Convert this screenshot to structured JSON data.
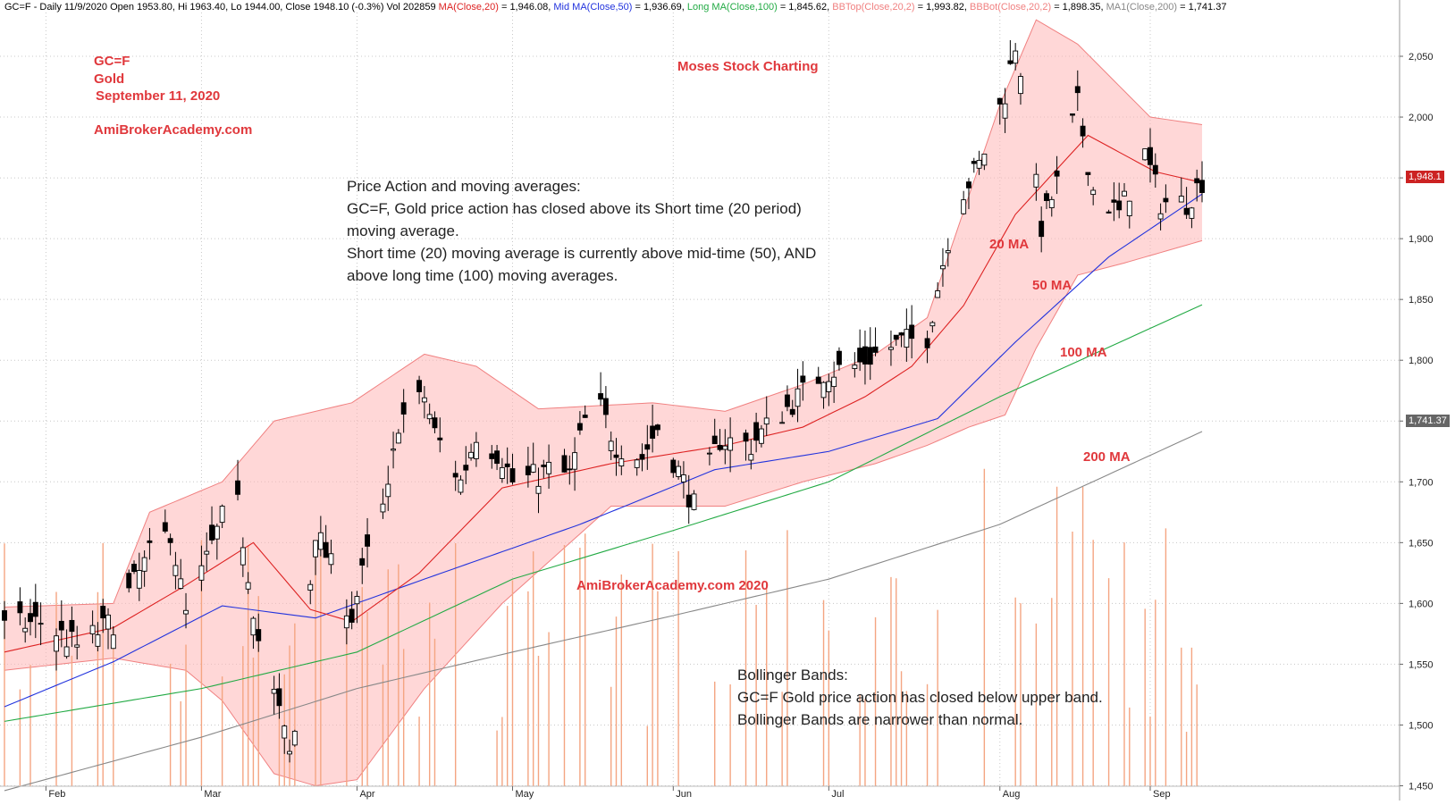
{
  "header": {
    "symbol_line": "GC=F - Daily 11/9/2020 Open 1953.80, Hi 1963.40, Lo 1944.00, Close 1948.10 (-0.3%) Vol 202859 ",
    "ma20": "MA(Close,20)",
    "ma20_val": " = 1,946.08, ",
    "mid_ma": "Mid MA(Close,50)",
    "mid_ma_val": " = 1,936.69, ",
    "long_ma": "Long MA(Close,100)",
    "long_ma_val": " = 1,845.62, ",
    "bbtop": "BBTop(Close,20,2)",
    "bbtop_val": " = 1,993.82, ",
    "bbbot": "BBBot(Close,20,2)",
    "bbbot_val": " = 1,898.35, ",
    "ma200": "MA1(Close,200)",
    "ma200_val": " = 1,741.37"
  },
  "annotations": {
    "ticker": "GC=F",
    "name": "Gold",
    "date": "September 11, 2020",
    "site": "AmiBrokerAcademy.com",
    "brand": "Moses Stock Charting",
    "watermark": "AmiBrokerAcademy.com  2020",
    "ma20_label": "20 MA",
    "ma50_label": "50 MA",
    "ma100_label": "100 MA",
    "ma200_label": "200 MA"
  },
  "notes": {
    "price_action": [
      "Price Action and moving averages:",
      "GC=F, Gold price action has closed above its Short time (20 period)",
      "moving average.",
      "Short time (20) moving average is currently above mid-time (50), AND",
      "above long time (100) moving averages."
    ],
    "bollinger": [
      "Bollinger Bands:",
      "GC=F Gold price action has closed below upper band.",
      "Bollinger Bands are narrower than normal."
    ]
  },
  "y_axis": {
    "ticks": [
      "2,050",
      "2,000",
      "1,950",
      "1,900",
      "1,850",
      "1,800",
      "1,750",
      "1,700",
      "1,650",
      "1,600",
      "1,550",
      "1,500",
      "1,450"
    ],
    "last_price_badge": "1,948.1",
    "ma200_badge": "1,741.37"
  },
  "x_axis": {
    "ticks": [
      "Feb",
      "Mar",
      "Apr",
      "May",
      "Jun",
      "Jul",
      "Aug",
      "Sep"
    ]
  },
  "colors": {
    "ma20": "#dd2222",
    "ma50": "#2233dd",
    "ma100": "#22aa44",
    "ma200": "#888888",
    "band_fill": "#ffb6b6",
    "band_edge": "#f08080",
    "volume": "#f4a582",
    "candle": "#000000",
    "annotation": "#e0383c"
  },
  "chart_data": {
    "type": "candlestick",
    "ylim": [
      1440,
      2080
    ],
    "x_range": [
      "2020-01-24",
      "2020-09-11"
    ],
    "month_ticks": [
      {
        "label": "Feb",
        "date": "2020-02-01"
      },
      {
        "label": "Mar",
        "date": "2020-03-02"
      },
      {
        "label": "Apr",
        "date": "2020-04-01"
      },
      {
        "label": "May",
        "date": "2020-05-01"
      },
      {
        "label": "Jun",
        "date": "2020-06-01"
      },
      {
        "label": "Jul",
        "date": "2020-07-01"
      },
      {
        "label": "Aug",
        "date": "2020-08-03"
      },
      {
        "label": "Sep",
        "date": "2020-09-01"
      }
    ],
    "price_path": [
      {
        "date": "2020-01-24",
        "close": 1580
      },
      {
        "date": "2020-01-31",
        "close": 1585
      },
      {
        "date": "2020-02-07",
        "close": 1565
      },
      {
        "date": "2020-02-14",
        "close": 1585
      },
      {
        "date": "2020-02-21",
        "close": 1640
      },
      {
        "date": "2020-02-25",
        "close": 1660
      },
      {
        "date": "2020-02-28",
        "close": 1590
      },
      {
        "date": "2020-03-06",
        "close": 1670
      },
      {
        "date": "2020-03-09",
        "close": 1680
      },
      {
        "date": "2020-03-13",
        "close": 1570
      },
      {
        "date": "2020-03-17",
        "close": 1510
      },
      {
        "date": "2020-03-19",
        "close": 1475
      },
      {
        "date": "2020-03-20",
        "close": 1495
      },
      {
        "date": "2020-03-24",
        "close": 1660
      },
      {
        "date": "2020-03-27",
        "close": 1630
      },
      {
        "date": "2020-03-31",
        "close": 1590
      },
      {
        "date": "2020-04-03",
        "close": 1640
      },
      {
        "date": "2020-04-07",
        "close": 1690
      },
      {
        "date": "2020-04-09",
        "close": 1750
      },
      {
        "date": "2020-04-14",
        "close": 1770
      },
      {
        "date": "2020-04-16",
        "close": 1740
      },
      {
        "date": "2020-04-21",
        "close": 1700
      },
      {
        "date": "2020-04-24",
        "close": 1740
      },
      {
        "date": "2020-04-29",
        "close": 1720
      },
      {
        "date": "2020-05-01",
        "close": 1700
      },
      {
        "date": "2020-05-06",
        "close": 1705
      },
      {
        "date": "2020-05-08",
        "close": 1710
      },
      {
        "date": "2020-05-12",
        "close": 1705
      },
      {
        "date": "2020-05-15",
        "close": 1750
      },
      {
        "date": "2020-05-18",
        "close": 1760
      },
      {
        "date": "2020-05-21",
        "close": 1730
      },
      {
        "date": "2020-05-26",
        "close": 1720
      },
      {
        "date": "2020-05-29",
        "close": 1745
      },
      {
        "date": "2020-06-03",
        "close": 1700
      },
      {
        "date": "2020-06-05",
        "close": 1680
      },
      {
        "date": "2020-06-10",
        "close": 1735
      },
      {
        "date": "2020-06-16",
        "close": 1730
      },
      {
        "date": "2020-06-19",
        "close": 1745
      },
      {
        "date": "2020-06-24",
        "close": 1765
      },
      {
        "date": "2020-06-30",
        "close": 1790
      },
      {
        "date": "2020-07-06",
        "close": 1795
      },
      {
        "date": "2020-07-10",
        "close": 1805
      },
      {
        "date": "2020-07-15",
        "close": 1815
      },
      {
        "date": "2020-07-20",
        "close": 1820
      },
      {
        "date": "2020-07-22",
        "close": 1860
      },
      {
        "date": "2020-07-24",
        "close": 1900
      },
      {
        "date": "2020-07-27",
        "close": 1940
      },
      {
        "date": "2020-07-30",
        "close": 1960
      },
      {
        "date": "2020-08-04",
        "close": 2020
      },
      {
        "date": "2020-08-06",
        "close": 2060
      },
      {
        "date": "2020-08-07",
        "close": 2040
      },
      {
        "date": "2020-08-11",
        "close": 1910
      },
      {
        "date": "2020-08-14",
        "close": 1945
      },
      {
        "date": "2020-08-18",
        "close": 2010
      },
      {
        "date": "2020-08-21",
        "close": 1940
      },
      {
        "date": "2020-08-26",
        "close": 1920
      },
      {
        "date": "2020-08-31",
        "close": 1970
      },
      {
        "date": "2020-09-03",
        "close": 1930
      },
      {
        "date": "2020-09-08",
        "close": 1930
      },
      {
        "date": "2020-09-11",
        "close": 1948.1
      }
    ],
    "ma20_path": [
      {
        "date": "2020-01-24",
        "value": 1560
      },
      {
        "date": "2020-02-14",
        "value": 1580
      },
      {
        "date": "2020-02-28",
        "value": 1615
      },
      {
        "date": "2020-03-12",
        "value": 1650
      },
      {
        "date": "2020-03-23",
        "value": 1595
      },
      {
        "date": "2020-03-31",
        "value": 1585
      },
      {
        "date": "2020-04-13",
        "value": 1625
      },
      {
        "date": "2020-04-29",
        "value": 1695
      },
      {
        "date": "2020-05-20",
        "value": 1715
      },
      {
        "date": "2020-06-11",
        "value": 1730
      },
      {
        "date": "2020-06-26",
        "value": 1745
      },
      {
        "date": "2020-07-08",
        "value": 1770
      },
      {
        "date": "2020-07-17",
        "value": 1795
      },
      {
        "date": "2020-07-27",
        "value": 1845
      },
      {
        "date": "2020-08-06",
        "value": 1920
      },
      {
        "date": "2020-08-20",
        "value": 1985
      },
      {
        "date": "2020-09-02",
        "value": 1955
      },
      {
        "date": "2020-09-11",
        "value": 1946.08
      }
    ],
    "ma50_path": [
      {
        "date": "2020-01-24",
        "value": 1515
      },
      {
        "date": "2020-02-14",
        "value": 1552
      },
      {
        "date": "2020-03-06",
        "value": 1598
      },
      {
        "date": "2020-03-24",
        "value": 1588
      },
      {
        "date": "2020-04-14",
        "value": 1620
      },
      {
        "date": "2020-05-14",
        "value": 1665
      },
      {
        "date": "2020-06-09",
        "value": 1710
      },
      {
        "date": "2020-07-01",
        "value": 1725
      },
      {
        "date": "2020-07-22",
        "value": 1752
      },
      {
        "date": "2020-08-06",
        "value": 1815
      },
      {
        "date": "2020-08-24",
        "value": 1885
      },
      {
        "date": "2020-09-11",
        "value": 1936.69
      }
    ],
    "ma100_path": [
      {
        "date": "2020-01-24",
        "value": 1503
      },
      {
        "date": "2020-03-02",
        "value": 1530
      },
      {
        "date": "2020-04-01",
        "value": 1560
      },
      {
        "date": "2020-05-01",
        "value": 1620
      },
      {
        "date": "2020-06-01",
        "value": 1660
      },
      {
        "date": "2020-07-01",
        "value": 1700
      },
      {
        "date": "2020-08-03",
        "value": 1770
      },
      {
        "date": "2020-09-11",
        "value": 1845.62
      }
    ],
    "ma200_path": [
      {
        "date": "2020-01-24",
        "value": 1446
      },
      {
        "date": "2020-03-02",
        "value": 1490
      },
      {
        "date": "2020-04-01",
        "value": 1530
      },
      {
        "date": "2020-05-01",
        "value": 1560
      },
      {
        "date": "2020-06-01",
        "value": 1590
      },
      {
        "date": "2020-07-01",
        "value": 1620
      },
      {
        "date": "2020-08-03",
        "value": 1665
      },
      {
        "date": "2020-09-11",
        "value": 1741.37
      }
    ],
    "bb_top_path": [
      {
        "date": "2020-01-24",
        "value": 1597
      },
      {
        "date": "2020-02-14",
        "value": 1600
      },
      {
        "date": "2020-02-21",
        "value": 1675
      },
      {
        "date": "2020-03-06",
        "value": 1700
      },
      {
        "date": "2020-03-16",
        "value": 1750
      },
      {
        "date": "2020-03-31",
        "value": 1765
      },
      {
        "date": "2020-04-14",
        "value": 1805
      },
      {
        "date": "2020-04-24",
        "value": 1795
      },
      {
        "date": "2020-05-06",
        "value": 1760
      },
      {
        "date": "2020-05-28",
        "value": 1765
      },
      {
        "date": "2020-06-11",
        "value": 1758
      },
      {
        "date": "2020-06-26",
        "value": 1780
      },
      {
        "date": "2020-07-10",
        "value": 1805
      },
      {
        "date": "2020-07-20",
        "value": 1835
      },
      {
        "date": "2020-08-03",
        "value": 2010
      },
      {
        "date": "2020-08-10",
        "value": 2080
      },
      {
        "date": "2020-08-18",
        "value": 2060
      },
      {
        "date": "2020-09-01",
        "value": 2000
      },
      {
        "date": "2020-09-11",
        "value": 1993.82
      }
    ],
    "bb_bot_path": [
      {
        "date": "2020-01-24",
        "value": 1545
      },
      {
        "date": "2020-02-14",
        "value": 1555
      },
      {
        "date": "2020-02-28",
        "value": 1545
      },
      {
        "date": "2020-03-06",
        "value": 1520
      },
      {
        "date": "2020-03-16",
        "value": 1460
      },
      {
        "date": "2020-03-24",
        "value": 1450
      },
      {
        "date": "2020-04-01",
        "value": 1455
      },
      {
        "date": "2020-04-14",
        "value": 1530
      },
      {
        "date": "2020-04-29",
        "value": 1600
      },
      {
        "date": "2020-05-20",
        "value": 1680
      },
      {
        "date": "2020-06-11",
        "value": 1680
      },
      {
        "date": "2020-06-26",
        "value": 1700
      },
      {
        "date": "2020-07-10",
        "value": 1715
      },
      {
        "date": "2020-07-20",
        "value": 1730
      },
      {
        "date": "2020-07-28",
        "value": 1745
      },
      {
        "date": "2020-08-04",
        "value": 1755
      },
      {
        "date": "2020-08-10",
        "value": 1810
      },
      {
        "date": "2020-08-18",
        "value": 1870
      },
      {
        "date": "2020-08-27",
        "value": 1880
      },
      {
        "date": "2020-09-11",
        "value": 1898.35
      }
    ]
  }
}
